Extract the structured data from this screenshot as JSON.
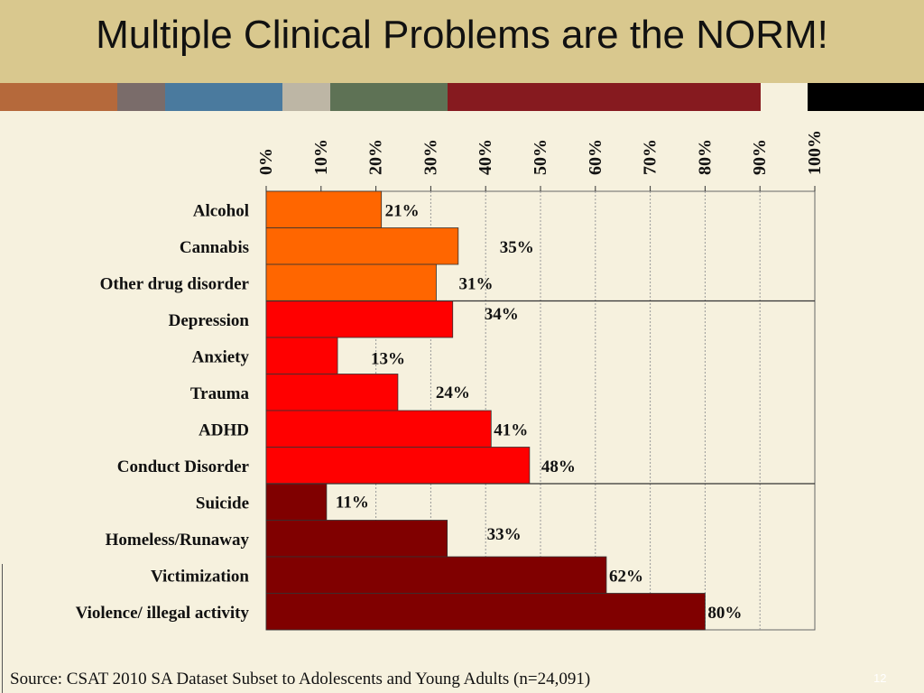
{
  "title": "Multiple Clinical Problems are the NORM!",
  "stripe_colors": [
    "#B5693B",
    "#7A6C6A",
    "#4A7A9E",
    "#BDB6A5",
    "#5E7255",
    "#861A1F",
    "#F6F1DE",
    "#000000"
  ],
  "chart_data": {
    "type": "bar",
    "orientation": "horizontal",
    "categories": [
      "Alcohol",
      "Cannabis",
      "Other drug disorder",
      "Depression",
      "Anxiety",
      "Trauma",
      "ADHD",
      "Conduct Disorder",
      "Suicide",
      "Homeless/Runaway",
      "Victimization",
      "Violence/ illegal activity"
    ],
    "values": [
      21,
      35,
      31,
      34,
      13,
      24,
      41,
      48,
      11,
      33,
      62,
      80
    ],
    "value_labels": [
      "21%",
      "35%",
      "31%",
      "34%",
      "13%",
      "24%",
      "41%",
      "48%",
      "11%",
      "33%",
      "62%",
      "80%"
    ],
    "groups": [
      {
        "categories": [
          "Alcohol",
          "Cannabis",
          "Other drug disorder"
        ],
        "color": "#FF6600"
      },
      {
        "categories": [
          "Depression",
          "Anxiety",
          "Trauma",
          "ADHD",
          "Conduct Disorder"
        ],
        "color": "#FF0000"
      },
      {
        "categories": [
          "Suicide",
          "Homeless/Runaway",
          "Victimization",
          "Violence/ illegal activity"
        ],
        "color": "#800000"
      }
    ],
    "xlim": [
      0,
      100
    ],
    "xticks": [
      0,
      10,
      20,
      30,
      40,
      50,
      60,
      70,
      80,
      90,
      100
    ],
    "xtick_labels": [
      "0%",
      "10%",
      "20%",
      "30%",
      "40%",
      "50%",
      "60%",
      "70%",
      "80%",
      "90%",
      "100%"
    ],
    "xaxis_position": "top",
    "grid": "vertical dotted",
    "title": "",
    "xlabel": "",
    "ylabel": ""
  },
  "source": "Source: CSAT 2010 SA Dataset Subset to Adolescents and Young Adults (n=24,091)",
  "page_number": "12"
}
